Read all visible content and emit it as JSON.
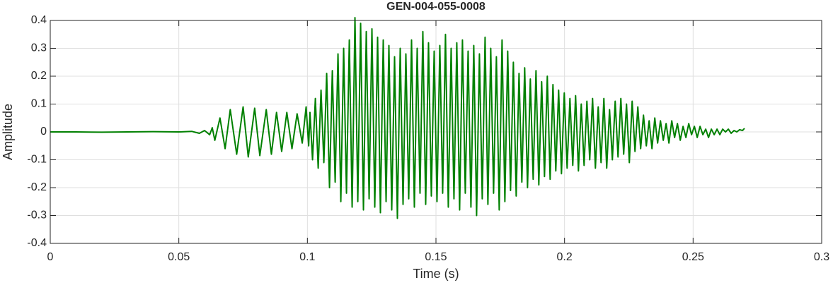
{
  "chart_data": {
    "type": "line",
    "title": "GEN-004-055-0008",
    "xlabel": "Time (s)",
    "ylabel": "Amplitude",
    "color": "#008000",
    "grid": true,
    "xlim": [
      0,
      0.3
    ],
    "xticks": [
      0,
      0.05,
      0.1,
      0.15,
      0.2,
      0.25,
      0.3
    ],
    "ylim": [
      -0.4,
      0.4
    ],
    "yticks": [
      -0.4,
      -0.3,
      -0.2,
      -0.1,
      0,
      0.1,
      0.2,
      0.3,
      0.4
    ],
    "x": [
      0,
      0.01,
      0.02,
      0.03,
      0.04,
      0.05,
      0.055,
      0.058,
      0.06,
      0.062,
      0.063,
      0.064,
      0.066,
      0.068,
      0.07,
      0.0725,
      0.075,
      0.077,
      0.0795,
      0.0815,
      0.084,
      0.086,
      0.088,
      0.09,
      0.092,
      0.094,
      0.096,
      0.098,
      0.0995,
      0.1005,
      0.101,
      0.102,
      0.1031,
      0.1042,
      0.1053,
      0.1064,
      0.1075,
      0.1086,
      0.1097,
      0.1108,
      0.1119,
      0.113,
      0.1141,
      0.1152,
      0.1163,
      0.1174,
      0.1185,
      0.1196,
      0.1207,
      0.1218,
      0.1229,
      0.124,
      0.1251,
      0.1262,
      0.1273,
      0.1284,
      0.1295,
      0.1306,
      0.1317,
      0.1328,
      0.1339,
      0.135,
      0.1361,
      0.1372,
      0.1383,
      0.1394,
      0.1405,
      0.1416,
      0.1427,
      0.1438,
      0.1449,
      0.146,
      0.1471,
      0.1482,
      0.1493,
      0.1504,
      0.1515,
      0.1526,
      0.1537,
      0.1548,
      0.1559,
      0.157,
      0.1581,
      0.1592,
      0.1603,
      0.1614,
      0.1625,
      0.1636,
      0.1647,
      0.1658,
      0.1669,
      0.168,
      0.1691,
      0.1702,
      0.1713,
      0.1724,
      0.1735,
      0.1746,
      0.1757,
      0.1768,
      0.1779,
      0.179,
      0.1801,
      0.1812,
      0.1823,
      0.1834,
      0.1845,
      0.1856,
      0.1867,
      0.1878,
      0.1889,
      0.19,
      0.1911,
      0.1922,
      0.1933,
      0.1944,
      0.1955,
      0.1966,
      0.1977,
      0.1988,
      0.1999,
      0.201,
      0.2021,
      0.2032,
      0.2043,
      0.2054,
      0.2065,
      0.2076,
      0.2087,
      0.2098,
      0.2109,
      0.212,
      0.2131,
      0.2142,
      0.2153,
      0.2164,
      0.2175,
      0.2186,
      0.2197,
      0.2208,
      0.2219,
      0.223,
      0.2241,
      0.2252,
      0.2263,
      0.2274,
      0.2285,
      0.2296,
      0.2307,
      0.2318,
      0.2329,
      0.234,
      0.2351,
      0.2362,
      0.2373,
      0.2384,
      0.2395,
      0.2406,
      0.2417,
      0.2428,
      0.2439,
      0.245,
      0.2461,
      0.2472,
      0.2483,
      0.2494,
      0.2505,
      0.2516,
      0.2527,
      0.2538,
      0.2549,
      0.256,
      0.2571,
      0.2582,
      0.2593,
      0.2604,
      0.2615,
      0.2626,
      0.2637,
      0.2648,
      0.2659,
      0.267,
      0.2681,
      0.2692,
      0.27
    ],
    "values": [
      0,
      0,
      -0.001,
      0,
      0.001,
      0,
      0.002,
      -0.005,
      0.005,
      -0.01,
      0.015,
      -0.03,
      0.05,
      -0.06,
      0.08,
      -0.08,
      0.09,
      -0.09,
      0.085,
      -0.085,
      0.08,
      -0.08,
      0.07,
      -0.07,
      0.07,
      -0.06,
      0.065,
      -0.04,
      0.09,
      -0.05,
      0.07,
      -0.1,
      0.12,
      -0.13,
      0.15,
      -0.11,
      0.21,
      -0.2,
      0.22,
      -0.18,
      0.28,
      -0.25,
      0.3,
      -0.22,
      0.33,
      -0.27,
      0.41,
      -0.25,
      0.39,
      -0.28,
      0.36,
      -0.24,
      0.37,
      -0.27,
      0.34,
      -0.29,
      0.33,
      -0.25,
      0.31,
      -0.28,
      0.27,
      -0.31,
      0.3,
      -0.26,
      0.28,
      -0.24,
      0.33,
      -0.27,
      0.3,
      -0.22,
      0.36,
      -0.26,
      0.32,
      -0.23,
      0.29,
      -0.25,
      0.31,
      -0.22,
      0.35,
      -0.27,
      0.3,
      -0.24,
      0.32,
      -0.28,
      0.33,
      -0.22,
      0.29,
      -0.27,
      0.31,
      -0.3,
      0.28,
      -0.24,
      0.34,
      -0.26,
      0.3,
      -0.22,
      0.27,
      -0.28,
      0.33,
      -0.25,
      0.29,
      -0.21,
      0.25,
      -0.23,
      0.21,
      -0.18,
      0.23,
      -0.2,
      0.19,
      -0.17,
      0.22,
      -0.19,
      0.18,
      -0.16,
      0.2,
      -0.17,
      0.17,
      -0.14,
      0.15,
      -0.15,
      0.14,
      -0.13,
      0.12,
      -0.12,
      0.13,
      -0.14,
      0.1,
      -0.12,
      0.11,
      -0.1,
      0.12,
      -0.13,
      0.09,
      -0.11,
      0.12,
      -0.13,
      0.08,
      -0.1,
      0.11,
      -0.09,
      0.12,
      -0.08,
      0.1,
      -0.11,
      0.11,
      -0.07,
      0.09,
      -0.06,
      0.06,
      -0.05,
      0.04,
      -0.06,
      0.05,
      -0.04,
      0.04,
      -0.03,
      0.03,
      -0.04,
      0.04,
      -0.02,
      0.03,
      -0.03,
      0.02,
      -0.02,
      0.03,
      -0.01,
      0.02,
      -0.02,
      0.02,
      -0.01,
      0.01,
      -0.02,
      0.01,
      -0.01,
      0.01,
      -0.01,
      0.01,
      0,
      0.01,
      -0.005,
      0.005,
      0,
      0.008,
      0.005,
      0.013
    ]
  }
}
